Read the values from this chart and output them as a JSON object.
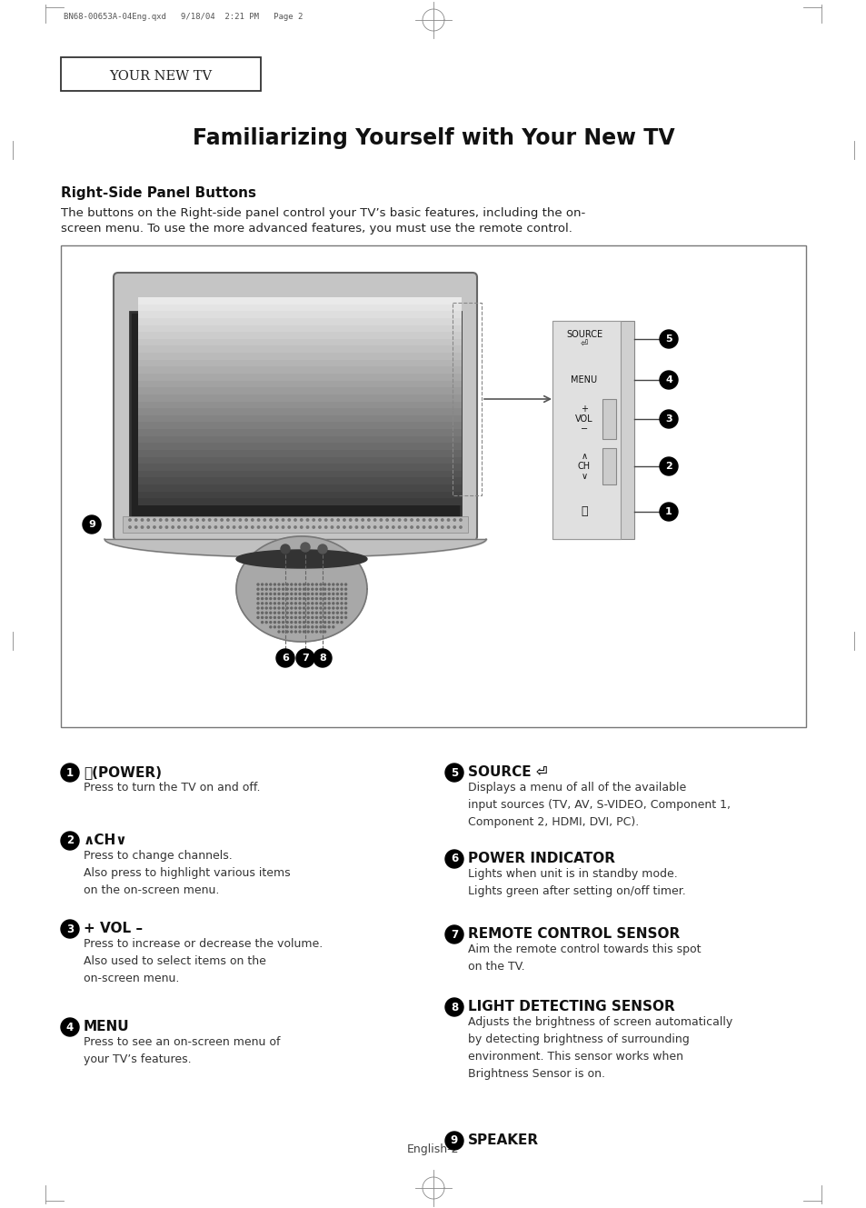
{
  "page_bg": "#ffffff",
  "header_text": "BN68-00653A-04Eng.qxd   9/18/04  2:21 PM   Page 2",
  "tab_text": "YOUR NEW TV",
  "main_title": "Familiarizing Yourself with Your New TV",
  "section_title": "Right-Side Panel Buttons",
  "intro_line1": "The buttons on the Right-side panel control your TV’s basic features, including the on-",
  "intro_line2": "screen menu. To use the more advanced features, you must use the remote control.",
  "footer_text": "English-2",
  "items_left": [
    {
      "num": "1",
      "title": "ⓘ(POWER)",
      "body": "Press to turn the TV on and off."
    },
    {
      "num": "2",
      "title": "∧CH∨",
      "body": "Press to change channels.\nAlso press to highlight various items\non the on-screen menu."
    },
    {
      "num": "3",
      "title": "+ VOL –",
      "body": "Press to increase or decrease the volume.\nAlso used to select items on the\non-screen menu."
    },
    {
      "num": "4",
      "title": "MENU",
      "body": "Press to see an on-screen menu of\nyour TV’s features."
    }
  ],
  "items_right": [
    {
      "num": "5",
      "title": "SOURCE ⏎",
      "body": "Displays a menu of all of the available\ninput sources (TV, AV, S-VIDEO, Component 1,\nComponent 2, HDMI, DVI, PC)."
    },
    {
      "num": "6",
      "title": "POWER INDICATOR",
      "body": "Lights when unit is in standby mode.\nLights green after setting on/off timer."
    },
    {
      "num": "7",
      "title": "REMOTE CONTROL SENSOR",
      "body": "Aim the remote control towards this spot\non the TV."
    },
    {
      "num": "8",
      "title": "LIGHT DETECTING SENSOR",
      "body": "Adjusts the brightness of screen automatically\nby detecting brightness of surrounding\nenvironment. This sensor works when\nBrightness Sensor is on."
    },
    {
      "num": "9",
      "title": "SPEAKER",
      "body": ""
    }
  ]
}
